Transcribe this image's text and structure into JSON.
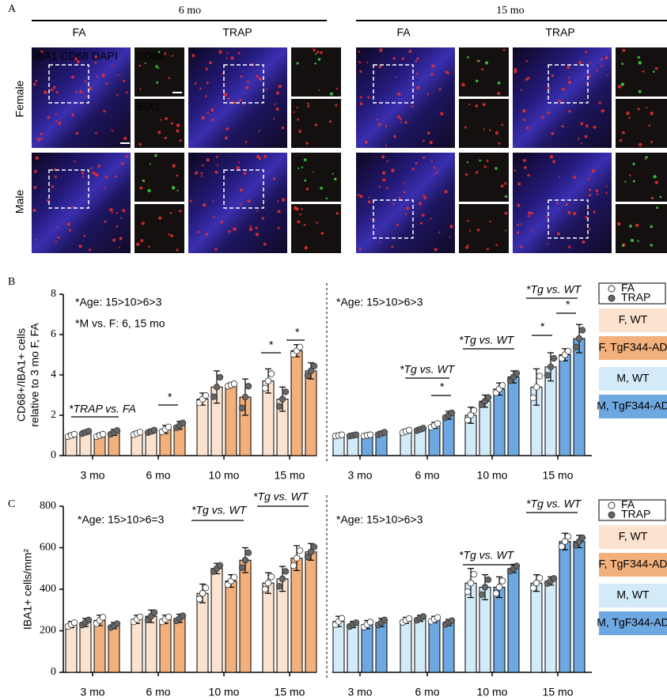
{
  "panel_labels": [
    "A",
    "B",
    "C"
  ],
  "panel_a": {
    "ages": [
      "6 mo",
      "15 mo"
    ],
    "exposures": [
      "FA",
      "TRAP",
      "FA",
      "TRAP"
    ],
    "sexes": [
      "Female",
      "Male"
    ],
    "stain_legend": [
      {
        "name": "IBA1",
        "color": "#ff2a2a"
      },
      {
        "name": "CD68",
        "color": "#33dd33"
      },
      {
        "name": "DAPI",
        "color": "#3a3aff"
      }
    ],
    "inset_labels": [
      "CD68",
      "IBA1"
    ]
  },
  "chart_data": [
    {
      "type": "bar",
      "ylabel": [
        "CD68+/IBA1+ cells",
        "relative to 3 mo F, FA"
      ],
      "categories": [
        "3 mo",
        "6 mo",
        "10 mo",
        "15 mo",
        "3 mo",
        "6 mo",
        "10 mo",
        "15 mo"
      ],
      "series": [
        {
          "genotype": 0,
          "exposure": 0,
          "values": [
            1.0,
            1.1,
            2.8,
            3.7,
            1.0,
            1.2,
            2.0,
            3.4
          ],
          "errors": [
            0.1,
            0.1,
            0.3,
            0.6,
            0.05,
            0.1,
            0.4,
            0.9
          ]
        },
        {
          "genotype": 0,
          "exposure": 1,
          "values": [
            1.15,
            1.2,
            3.4,
            2.8,
            1.0,
            1.3,
            2.7,
            4.4
          ],
          "errors": [
            0.1,
            0.1,
            0.8,
            0.6,
            0.05,
            0.1,
            0.3,
            0.7
          ]
        },
        {
          "genotype": 1,
          "exposure": 0,
          "values": [
            1.0,
            1.3,
            3.5,
            5.2,
            1.0,
            1.5,
            3.3,
            5.0
          ],
          "errors": [
            0.1,
            0.2,
            0.1,
            0.3,
            0.05,
            0.15,
            0.3,
            0.3
          ]
        },
        {
          "genotype": 1,
          "exposure": 1,
          "values": [
            1.15,
            1.5,
            2.9,
            4.2,
            1.1,
            2.0,
            3.9,
            5.8
          ],
          "errors": [
            0.15,
            0.2,
            0.9,
            0.4,
            0.1,
            0.2,
            0.3,
            0.7
          ]
        }
      ],
      "ylim": [
        0,
        8
      ],
      "yticks": [
        0,
        2,
        4,
        6,
        8
      ],
      "legend": {
        "exposures": [
          {
            "name": "FA",
            "color": "#ffffff"
          },
          {
            "name": "TRAP",
            "color": "#666666"
          }
        ],
        "groups": [
          {
            "name": "F, WT",
            "color": "#fce3cf"
          },
          {
            "name": "F, TgF344-AD",
            "color": "#f2b07c"
          },
          {
            "name": "M, WT",
            "color": "#d3ebf8"
          },
          {
            "name": "M, TgF344-AD",
            "color": "#6ea8e0"
          }
        ]
      },
      "annotations": [
        "*Age: 15>10>6>3",
        "*M vs. F: 6, 15 mo",
        "*TRAP vs. FA",
        "*",
        "*",
        "*",
        "*Age: 15>10>6>3",
        "*Tg vs. WT",
        "*",
        "*Tg vs. WT",
        "*Tg vs. WT",
        "*",
        "*"
      ]
    },
    {
      "type": "bar",
      "ylabel": [
        "IBA1+ cells/mm²"
      ],
      "categories": [
        "3 mo",
        "6 mo",
        "10 mo",
        "15 mo",
        "3 mo",
        "6 mo",
        "10 mo",
        "15 mo"
      ],
      "series": [
        {
          "genotype": 0,
          "exposure": 0,
          "values": [
            230,
            255,
            380,
            430,
            245,
            250,
            430,
            430
          ],
          "errors": [
            15,
            20,
            45,
            50,
            25,
            15,
            70,
            40
          ]
        },
        {
          "genotype": 0,
          "exposure": 1,
          "values": [
            240,
            270,
            500,
            450,
            230,
            260,
            410,
            440
          ],
          "errors": [
            20,
            30,
            25,
            60,
            15,
            15,
            60,
            20
          ]
        },
        {
          "genotype": 1,
          "exposure": 0,
          "values": [
            250,
            255,
            440,
            550,
            230,
            255,
            410,
            630
          ],
          "errors": [
            25,
            20,
            30,
            60,
            20,
            15,
            50,
            40
          ]
        },
        {
          "genotype": 1,
          "exposure": 1,
          "values": [
            225,
            260,
            540,
            580,
            240,
            240,
            500,
            630
          ],
          "errors": [
            15,
            20,
            60,
            40,
            20,
            15,
            20,
            30
          ]
        }
      ],
      "ylim": [
        0,
        800
      ],
      "yticks": [
        0,
        200,
        400,
        600,
        800
      ],
      "legend": {
        "exposures": [
          {
            "name": "FA",
            "color": "#ffffff"
          },
          {
            "name": "TRAP",
            "color": "#666666"
          }
        ],
        "groups": [
          {
            "name": "F, WT",
            "color": "#fce3cf"
          },
          {
            "name": "F, TgF344-AD",
            "color": "#f2b07c"
          },
          {
            "name": "M, WT",
            "color": "#d3ebf8"
          },
          {
            "name": "M, TgF344-AD",
            "color": "#6ea8e0"
          }
        ]
      },
      "annotations": [
        "*Age: 15>10>6=3",
        "*Tg vs. WT",
        "*Tg vs. WT",
        "*Age: 15>10>6>3",
        "*Tg vs. WT",
        "*Tg vs. WT"
      ]
    }
  ]
}
